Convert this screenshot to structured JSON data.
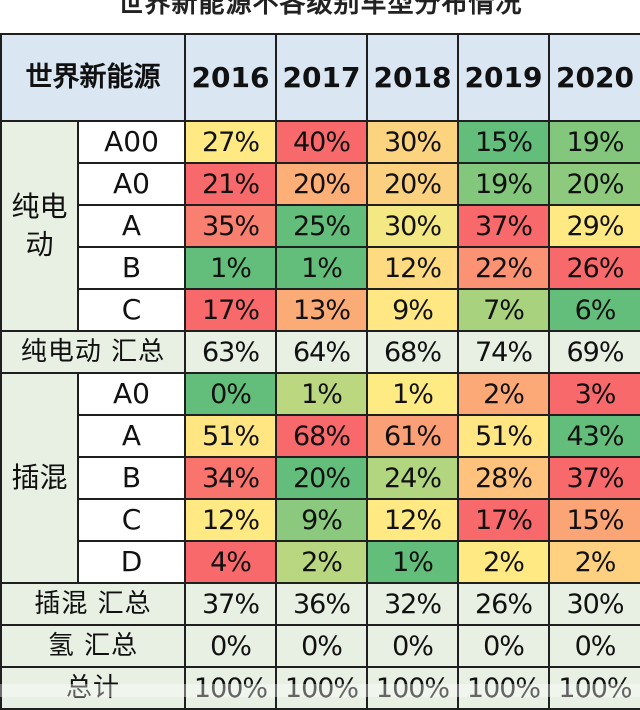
{
  "title": "世界新能源不各级别车型分布情况",
  "table": {
    "corner_label": "世界新能源",
    "years": [
      "2016",
      "2017",
      "2018",
      "2019",
      "2020"
    ],
    "groups": [
      {
        "label": "纯电动",
        "rows": [
          {
            "grade": "A00",
            "values": [
              "27%",
              "40%",
              "30%",
              "15%",
              "19%"
            ],
            "colors": [
              "#fee982",
              "#f8696b",
              "#fcd37f",
              "#63be7b",
              "#82c77c"
            ]
          },
          {
            "grade": "A0",
            "values": [
              "21%",
              "20%",
              "20%",
              "19%",
              "20%"
            ],
            "colors": [
              "#f8696b",
              "#fcaf77",
              "#fbd180",
              "#83c77d",
              "#8dca7e"
            ]
          },
          {
            "grade": "A",
            "values": [
              "35%",
              "25%",
              "30%",
              "37%",
              "29%"
            ],
            "colors": [
              "#f98070",
              "#63be7b",
              "#f4e884",
              "#f8696b",
              "#fee983"
            ]
          },
          {
            "grade": "B",
            "values": [
              "1%",
              "1%",
              "12%",
              "22%",
              "26%"
            ],
            "colors": [
              "#63be7b",
              "#63be7b",
              "#fedb80",
              "#fa9273",
              "#f8696b"
            ]
          },
          {
            "grade": "C",
            "values": [
              "17%",
              "13%",
              "9%",
              "7%",
              "6%"
            ],
            "colors": [
              "#f8696b",
              "#fbab76",
              "#ffe784",
              "#a9d27f",
              "#63be7b"
            ]
          }
        ],
        "subtotal_label": "纯电动 汇总",
        "subtotal": [
          "63%",
          "64%",
          "68%",
          "74%",
          "69%"
        ]
      },
      {
        "label": "插混",
        "rows": [
          {
            "grade": "A0",
            "values": [
              "0%",
              "1%",
              "1%",
              "2%",
              "3%"
            ],
            "colors": [
              "#63be7b",
              "#bbd780",
              "#ffeb84",
              "#fca977",
              "#f8696b"
            ]
          },
          {
            "grade": "A",
            "values": [
              "51%",
              "68%",
              "61%",
              "51%",
              "43%"
            ],
            "colors": [
              "#ffe683",
              "#f8696b",
              "#fba076",
              "#ffe683",
              "#63be7b"
            ]
          },
          {
            "grade": "B",
            "values": [
              "34%",
              "20%",
              "24%",
              "28%",
              "37%"
            ],
            "colors": [
              "#f8746d",
              "#63be7b",
              "#b2d580",
              "#fec27c",
              "#f8696b"
            ]
          },
          {
            "grade": "C",
            "values": [
              "12%",
              "9%",
              "12%",
              "17%",
              "15%"
            ],
            "colors": [
              "#fee983",
              "#8bc97e",
              "#fee983",
              "#f8696b",
              "#fba476"
            ]
          },
          {
            "grade": "D",
            "values": [
              "4%",
              "2%",
              "1%",
              "2%",
              "2%"
            ],
            "colors": [
              "#f8696b",
              "#b9d780",
              "#63be7b",
              "#fee983",
              "#fdd17f"
            ]
          }
        ],
        "subtotal_label": "插混 汇总",
        "subtotal": [
          "37%",
          "36%",
          "32%",
          "26%",
          "30%"
        ]
      }
    ],
    "hydrogen_label": "氢 汇总",
    "hydrogen": [
      "0%",
      "0%",
      "0%",
      "0%",
      "0%"
    ],
    "grand_total_label": "总计",
    "grand_total": [
      "100%",
      "100%",
      "100%",
      "100%",
      "100%"
    ]
  }
}
